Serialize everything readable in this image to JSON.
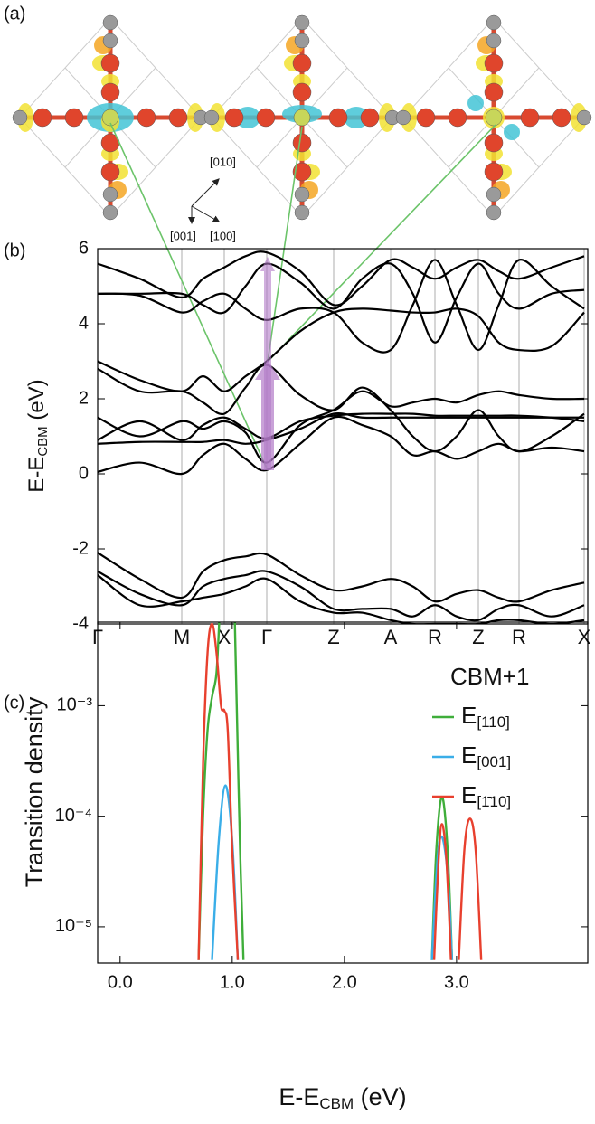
{
  "chart_data": [
    {
      "type": "line",
      "panel": "(b)",
      "ylabel": [
        "E-E",
        "CBM",
        " (eV)"
      ],
      "x": [
        0,
        0.465,
        0.93,
        1.165,
        1.4,
        1.635,
        1.87,
        2.24,
        2.61,
        2.925,
        3.24,
        3.485,
        3.73,
        3.97,
        4.21,
        4.435,
        4.66,
        5.02,
        5.38
      ],
      "xlim": [
        0,
        5.42
      ],
      "xticks": [
        {
          "value": 0,
          "label": "Γ"
        },
        {
          "value": 0.93,
          "label": "M"
        },
        {
          "value": 1.4,
          "label": "X"
        },
        {
          "value": 1.87,
          "label": "Γ"
        },
        {
          "value": 2.61,
          "label": "Z"
        },
        {
          "value": 3.24,
          "label": "A"
        },
        {
          "value": 3.73,
          "label": "R"
        },
        {
          "value": 4.21,
          "label": "Z"
        },
        {
          "value": 4.66,
          "label": "R"
        },
        {
          "value": 5.38,
          "label": "X"
        }
      ],
      "ylim": [
        -4,
        6
      ],
      "yticks": [
        -4,
        -2,
        0,
        2,
        4,
        6
      ],
      "grid": true,
      "series": [
        {
          "color": "#000000",
          "values": [
            0.05,
            0.3,
            0.0,
            0.5,
            0.8,
            0.4,
            0.1,
            0.8,
            1.5,
            1.3,
            1.0,
            0.5,
            0.6,
            0.4,
            0.6,
            0.8,
            0.6,
            0.7,
            0.6
          ]
        },
        {
          "color": "#000000",
          "values": [
            0.8,
            0.85,
            0.85,
            0.85,
            0.9,
            0.8,
            0.9,
            1.2,
            1.6,
            1.5,
            1.5,
            1.5,
            1.5,
            1.5,
            1.5,
            1.5,
            1.5,
            1.5,
            1.5
          ]
        },
        {
          "color": "#000000",
          "values": [
            0.9,
            1.4,
            0.9,
            1.3,
            1.5,
            1.2,
            0.95,
            1.4,
            1.55,
            1.6,
            1.6,
            1.6,
            1.55,
            1.55,
            1.55,
            1.55,
            1.55,
            1.5,
            1.4
          ]
        },
        {
          "color": "#000000",
          "values": [
            1.5,
            1.0,
            1.4,
            1.2,
            1.4,
            1.1,
            0.3,
            1.3,
            1.7,
            2.2,
            1.8,
            1.9,
            2.0,
            1.9,
            2.1,
            2.2,
            2.1,
            2.0,
            2.0
          ]
        },
        {
          "color": "#000000",
          "values": [
            2.8,
            2.2,
            2.2,
            1.9,
            1.6,
            2.3,
            2.9,
            2.1,
            1.7,
            2.3,
            1.7,
            1.0,
            0.6,
            1.0,
            1.7,
            1.0,
            0.6,
            1.0,
            1.6
          ]
        },
        {
          "color": "#000000",
          "values": [
            3.0,
            2.5,
            2.2,
            2.6,
            2.2,
            2.6,
            3.0,
            3.8,
            4.3,
            4.4,
            4.35,
            4.3,
            4.3,
            4.4,
            4.2,
            3.5,
            3.3,
            3.4,
            4.3
          ]
        },
        {
          "color": "#000000",
          "values": [
            4.8,
            4.75,
            4.3,
            4.6,
            4.8,
            4.4,
            4.1,
            4.4,
            4.3,
            3.5,
            3.3,
            4.5,
            5.7,
            4.5,
            3.3,
            4.5,
            5.7,
            5.0,
            4.4
          ]
        },
        {
          "color": "#000000",
          "values": [
            4.8,
            4.8,
            4.8,
            4.5,
            4.3,
            5.0,
            5.6,
            5.1,
            4.4,
            5.2,
            5.6,
            4.8,
            3.5,
            4.7,
            5.6,
            4.8,
            4.4,
            4.8,
            4.9
          ]
        },
        {
          "color": "#000000",
          "values": [
            5.6,
            5.2,
            4.7,
            5.2,
            5.5,
            5.8,
            5.9,
            5.4,
            4.5,
            5.0,
            5.7,
            5.5,
            5.2,
            5.5,
            5.7,
            5.4,
            5.2,
            5.5,
            5.8
          ]
        },
        {
          "color": "#000000",
          "values": [
            -2.1,
            -2.8,
            -3.3,
            -2.6,
            -2.3,
            -2.2,
            -2.15,
            -2.7,
            -3.1,
            -3.0,
            -2.8,
            -3.0,
            -3.4,
            -3.2,
            -3.1,
            -3.3,
            -3.4,
            -3.1,
            -2.9
          ]
        },
        {
          "color": "#000000",
          "values": [
            -2.6,
            -3.2,
            -3.5,
            -3.0,
            -2.8,
            -2.7,
            -2.6,
            -3.0,
            -3.6,
            -3.6,
            -3.6,
            -3.8,
            -3.5,
            -3.8,
            -3.9,
            -3.6,
            -3.5,
            -3.8,
            -3.5
          ]
        },
        {
          "color": "#000000",
          "values": [
            -2.7,
            -3.5,
            -3.4,
            -3.3,
            -3.2,
            -3.0,
            -2.8,
            -3.4,
            -3.7,
            -3.7,
            -3.9,
            -4.0,
            -4.0,
            -4.0,
            -4.0,
            -3.9,
            -3.9,
            -4.0,
            -3.9
          ]
        }
      ]
    },
    {
      "type": "line",
      "panel": "(c)",
      "xlabel": [
        "E-E",
        "CBM",
        " (eV)"
      ],
      "ylabel": "Transition density",
      "xlim": [
        -0.2,
        4.17
      ],
      "xticks": [
        {
          "value": 0,
          "label": "0.0"
        },
        {
          "value": 1,
          "label": "1.0"
        },
        {
          "value": 2,
          "label": "2.0"
        },
        {
          "value": 3,
          "label": "3.0"
        }
      ],
      "ylim": [
        4.7e-06,
        0.0057
      ],
      "log_y": true,
      "yticks": [
        {
          "value": 1e-05,
          "label": "10⁻⁵"
        },
        {
          "value": 0.0001,
          "label": "10⁻⁴"
        },
        {
          "value": 0.001,
          "label": "10⁻³"
        }
      ],
      "legend_title": "CBM+1",
      "legend": "upper right",
      "series": [
        {
          "name": "E[110]",
          "color": "#3fae3a",
          "x": [
            0.7,
            0.74,
            0.78,
            0.82,
            0.86,
            0.89,
            0.95,
            1.02,
            1.04,
            1.07,
            1.1,
            2.0,
            2.78,
            2.82,
            2.87,
            2.92,
            2.96
          ],
          "values": [
            5e-06,
            0.0001,
            0.0006,
            0.0012,
            0.002,
            0.008,
            null,
            0.008,
            0.001,
            5e-05,
            5e-06,
            null,
            5e-06,
            5e-05,
            0.00015,
            5e-05,
            5e-06
          ]
        },
        {
          "name": "E[001]",
          "color": "#3aaee8",
          "x": [
            0.82,
            0.88,
            0.94,
            1.0,
            1.05,
            2.0,
            2.78,
            2.83,
            2.87,
            2.92,
            2.96
          ],
          "values": [
            5e-06,
            6e-05,
            0.00019,
            6e-05,
            5e-06,
            null,
            5e-06,
            4e-05,
            6.5e-05,
            3e-05,
            5e-06
          ]
        },
        {
          "name": "E[1̄10]",
          "color": "#e8402e",
          "x": [
            0.7,
            0.74,
            0.78,
            0.82,
            0.86,
            0.9,
            0.93,
            0.96,
            1.0,
            1.05,
            2.0,
            2.8,
            2.84,
            2.87,
            2.91,
            2.95,
            2.99,
            3.02,
            3.07,
            3.12,
            3.17,
            3.22
          ],
          "values": [
            5e-06,
            0.0003,
            0.003,
            0.0055,
            0.003,
            0.001,
            0.0009,
            0.0006,
            5e-05,
            5e-06,
            null,
            5e-06,
            4e-05,
            8.5e-05,
            4e-05,
            5e-06,
            null,
            5e-06,
            5e-05,
            9.5e-05,
            5e-05,
            5e-06
          ]
        }
      ]
    }
  ],
  "figure": {
    "panel_a": "(a)",
    "directions": [
      "[010]",
      "[001]",
      "[100]"
    ]
  }
}
